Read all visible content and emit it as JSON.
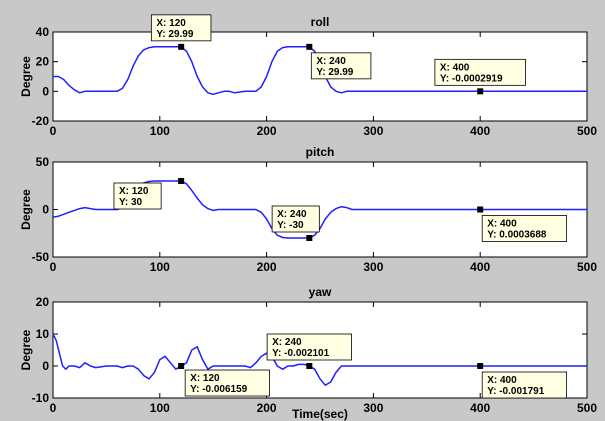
{
  "figure": {
    "background": "#c8c8c8",
    "axes_background": "#ffffff",
    "line_color": "#1f1fff"
  },
  "chart_data": [
    {
      "type": "line",
      "title": "roll",
      "ylabel": "Degree",
      "xlabel": "",
      "xlim": [
        0,
        500
      ],
      "ylim": [
        -20,
        40
      ],
      "xticks": [
        0,
        100,
        200,
        300,
        400,
        500
      ],
      "yticks": [
        -20,
        0,
        20,
        40
      ],
      "grid": false,
      "series": [
        {
          "x": [
            0,
            5,
            10,
            15,
            20,
            25,
            30,
            35,
            40,
            50,
            60,
            65,
            70,
            75,
            80,
            85,
            90,
            95,
            100,
            110,
            120,
            125,
            130,
            135,
            140,
            145,
            150,
            155,
            160,
            165,
            170,
            180,
            190,
            195,
            200,
            205,
            210,
            215,
            220,
            230,
            240,
            245,
            250,
            255,
            260,
            265,
            270,
            275,
            280,
            290,
            300,
            400,
            500
          ],
          "y": [
            10,
            10,
            8,
            4,
            1,
            -1,
            0,
            0,
            0,
            0,
            0,
            2,
            8,
            17,
            24,
            28,
            29.5,
            30,
            30,
            30,
            29.99,
            27,
            20,
            10,
            3,
            -1,
            -2,
            -1,
            0,
            0,
            -1,
            0,
            0,
            3,
            10,
            20,
            27,
            29.5,
            30,
            30,
            29.99,
            27,
            20,
            10,
            3,
            0,
            -1,
            0,
            0,
            0,
            0,
            -0.0002919,
            0
          ]
        }
      ],
      "datatips": [
        {
          "x": 120,
          "y": 29.99,
          "line1": "X: 120",
          "line2": "Y: 29.99",
          "side": "above"
        },
        {
          "x": 240,
          "y": 29.99,
          "line1": "X: 240",
          "line2": "Y: 29.99",
          "side": "below"
        },
        {
          "x": 400,
          "y": -0.0002919,
          "line1": "X: 400",
          "line2": "Y: -0.0002919",
          "side": "above"
        }
      ]
    },
    {
      "type": "line",
      "title": "pitch",
      "ylabel": "Degree",
      "xlabel": "",
      "xlim": [
        0,
        500
      ],
      "ylim": [
        -50,
        50
      ],
      "xticks": [
        0,
        100,
        200,
        300,
        400,
        500
      ],
      "yticks": [
        -50,
        0,
        50
      ],
      "grid": false,
      "series": [
        {
          "x": [
            0,
            5,
            10,
            15,
            20,
            25,
            30,
            35,
            40,
            50,
            60,
            65,
            70,
            75,
            80,
            85,
            90,
            95,
            100,
            110,
            120,
            125,
            130,
            135,
            140,
            145,
            150,
            155,
            160,
            170,
            180,
            190,
            195,
            200,
            205,
            210,
            215,
            220,
            230,
            240,
            245,
            250,
            255,
            260,
            265,
            270,
            275,
            280,
            290,
            300,
            400,
            500
          ],
          "y": [
            -8,
            -7,
            -5,
            -3,
            -1,
            1,
            2,
            1,
            0,
            0,
            0,
            2,
            8,
            17,
            24,
            28,
            29.5,
            30,
            30,
            30,
            30,
            27,
            20,
            12,
            5,
            1,
            -1,
            0,
            0,
            0,
            0,
            0,
            -3,
            -10,
            -20,
            -27,
            -29.5,
            -30,
            -30,
            -30,
            -27,
            -20,
            -10,
            -3,
            1,
            3,
            2,
            0,
            0,
            0,
            0.0003688,
            0
          ]
        }
      ],
      "datatips": [
        {
          "x": 120,
          "y": 30,
          "line1": "X: 120",
          "line2": "Y: 30",
          "side": "left"
        },
        {
          "x": 240,
          "y": -30,
          "line1": "X: 240",
          "line2": "Y: -30",
          "side": "aboveleft"
        },
        {
          "x": 400,
          "y": 0.0003688,
          "line1": "X: 400",
          "line2": "Y: 0.0003688",
          "side": "below"
        }
      ]
    },
    {
      "type": "line",
      "title": "yaw",
      "ylabel": "Degree",
      "xlabel": "Time(sec)",
      "xlim": [
        0,
        500
      ],
      "ylim": [
        -10,
        20
      ],
      "xticks": [
        0,
        100,
        200,
        300,
        400,
        500
      ],
      "yticks": [
        -10,
        0,
        10,
        20
      ],
      "grid": false,
      "series": [
        {
          "x": [
            0,
            3,
            6,
            9,
            12,
            15,
            20,
            25,
            30,
            35,
            40,
            50,
            60,
            65,
            70,
            75,
            80,
            85,
            90,
            95,
            100,
            105,
            110,
            115,
            120,
            125,
            130,
            135,
            140,
            145,
            150,
            160,
            170,
            180,
            185,
            190,
            195,
            200,
            205,
            210,
            215,
            220,
            225,
            230,
            235,
            240,
            245,
            250,
            255,
            260,
            265,
            270,
            275,
            280,
            290,
            300,
            400,
            500
          ],
          "y": [
            10,
            8,
            4,
            0,
            -1,
            0,
            0,
            -0.5,
            1,
            0,
            -0.5,
            0,
            0,
            -0.5,
            0,
            0,
            -1,
            -3,
            -4,
            -2,
            2,
            3,
            1,
            -1,
            -0.006159,
            1,
            5,
            6,
            2,
            -1,
            0,
            0,
            0,
            0,
            -0.5,
            1,
            3,
            4,
            3,
            0,
            -1,
            0,
            0,
            0.5,
            0.5,
            -0.002101,
            -1,
            -4,
            -6,
            -5,
            -2,
            0,
            0,
            0,
            0,
            0,
            -0.001791,
            0
          ]
        }
      ],
      "datatips": [
        {
          "x": 120,
          "y": -0.006159,
          "line1": "X: 120",
          "line2": "Y: -0.006159",
          "side": "belowright"
        },
        {
          "x": 240,
          "y": -0.002101,
          "line1": "X: 240",
          "line2": "Y: -0.002101",
          "side": "above"
        },
        {
          "x": 400,
          "y": -0.001791,
          "line1": "X: 400",
          "line2": "Y: -0.001791",
          "side": "below"
        }
      ]
    }
  ]
}
